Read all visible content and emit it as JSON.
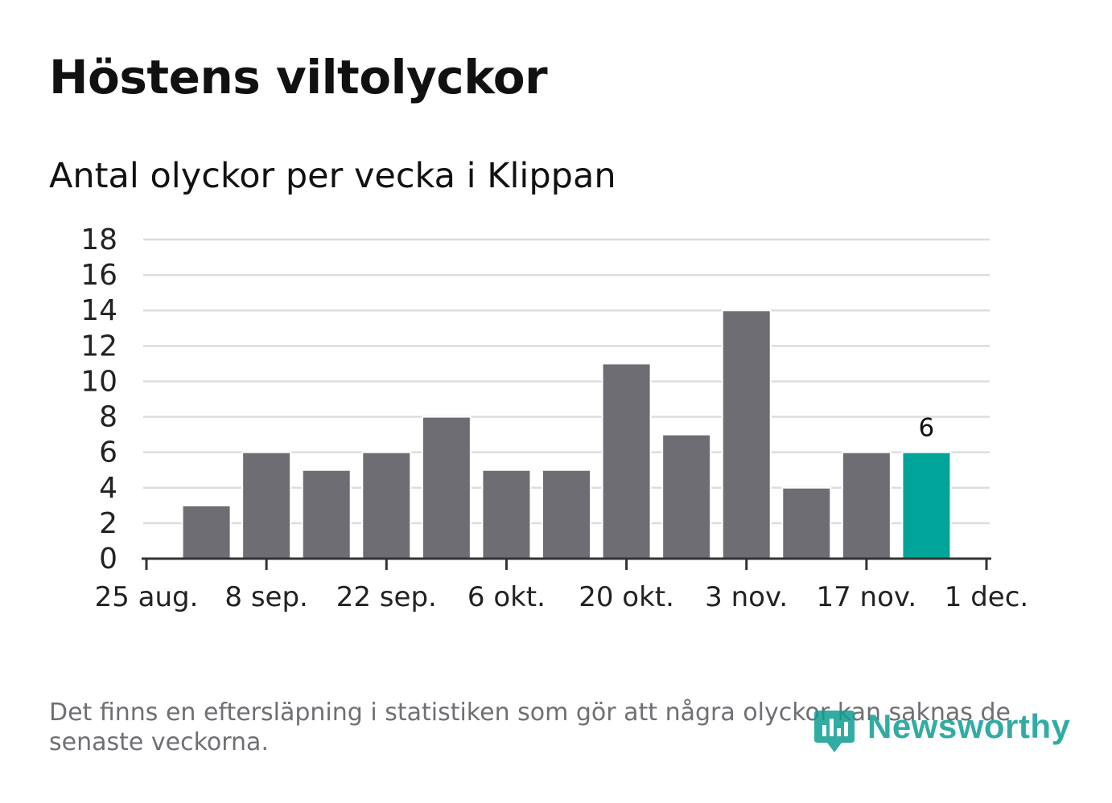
{
  "header": {
    "title": "Höstens viltolyckor",
    "subtitle": "Antal olyckor per vecka i Klippan"
  },
  "footer": {
    "note": "Det finns en eftersläpning i statistiken som gör att några olyckor kan saknas de senaste veckorna.",
    "brand": "Newsworthy"
  },
  "colors": {
    "bar": "#6e6d73",
    "highlight": "#00a499",
    "grid": "#dddddd",
    "axis": "#333333",
    "brand": "#0f9e92"
  },
  "chart_data": {
    "type": "bar",
    "title": "Antal olyckor per vecka i Klippan",
    "xlabel": "",
    "ylabel": "",
    "ylim": [
      0,
      18
    ],
    "yticks": [
      0,
      2,
      4,
      6,
      8,
      10,
      12,
      14,
      16,
      18
    ],
    "x_ticks": [
      "25 aug.",
      "8 sep.",
      "22 sep.",
      "6 okt.",
      "20 okt.",
      "3 nov.",
      "17 nov.",
      "1 dec."
    ],
    "grid": true,
    "values": [
      3,
      6,
      5,
      6,
      8,
      5,
      5,
      11,
      7,
      14,
      4,
      6,
      6
    ],
    "highlight_index": 12,
    "highlight_label": "6"
  }
}
